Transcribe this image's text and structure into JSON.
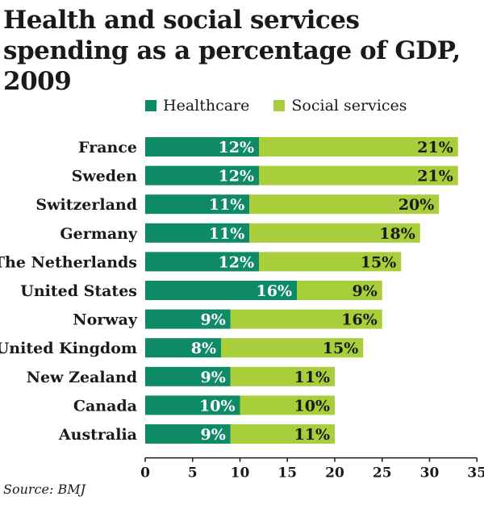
{
  "title": "Health and social services spending as a percentage of GDP, 2009",
  "source": "Source: BMJ",
  "colors": {
    "healthcare": "#0f8a67",
    "social": "#a8ce3b",
    "text": "#1a1a1a"
  },
  "legend": [
    {
      "label": "Healthcare",
      "color": "#0f8a67"
    },
    {
      "label": "Social services",
      "color": "#a8ce3b"
    }
  ],
  "chart_data": {
    "type": "bar",
    "orientation": "horizontal",
    "stacked": true,
    "title": "Health and social services spending as a percentage of GDP, 2009",
    "categories": [
      "France",
      "Sweden",
      "Switzerland",
      "Germany",
      "The Netherlands",
      "United States",
      "Norway",
      "United Kingdom",
      "New Zealand",
      "Canada",
      "Australia"
    ],
    "series": [
      {
        "name": "Healthcare",
        "values": [
          12,
          12,
          11,
          11,
          12,
          16,
          9,
          8,
          9,
          10,
          9
        ],
        "labels": [
          "12%",
          "12%",
          "11%",
          "11%",
          "12%",
          "16%",
          "9%",
          "8%",
          "9%",
          "10%",
          "9%"
        ]
      },
      {
        "name": "Social services",
        "values": [
          21,
          21,
          20,
          18,
          15,
          9,
          16,
          15,
          11,
          10,
          11
        ],
        "labels": [
          "21%",
          "21%",
          "20%",
          "18%",
          "15%",
          "9%",
          "16%",
          "15%",
          "11%",
          "10%",
          "11%"
        ]
      }
    ],
    "xlim": [
      0,
      35
    ],
    "xticks": [
      "0",
      "5",
      "10",
      "15",
      "20",
      "25",
      "30",
      "35"
    ],
    "legend_position": "top",
    "grid": false
  }
}
